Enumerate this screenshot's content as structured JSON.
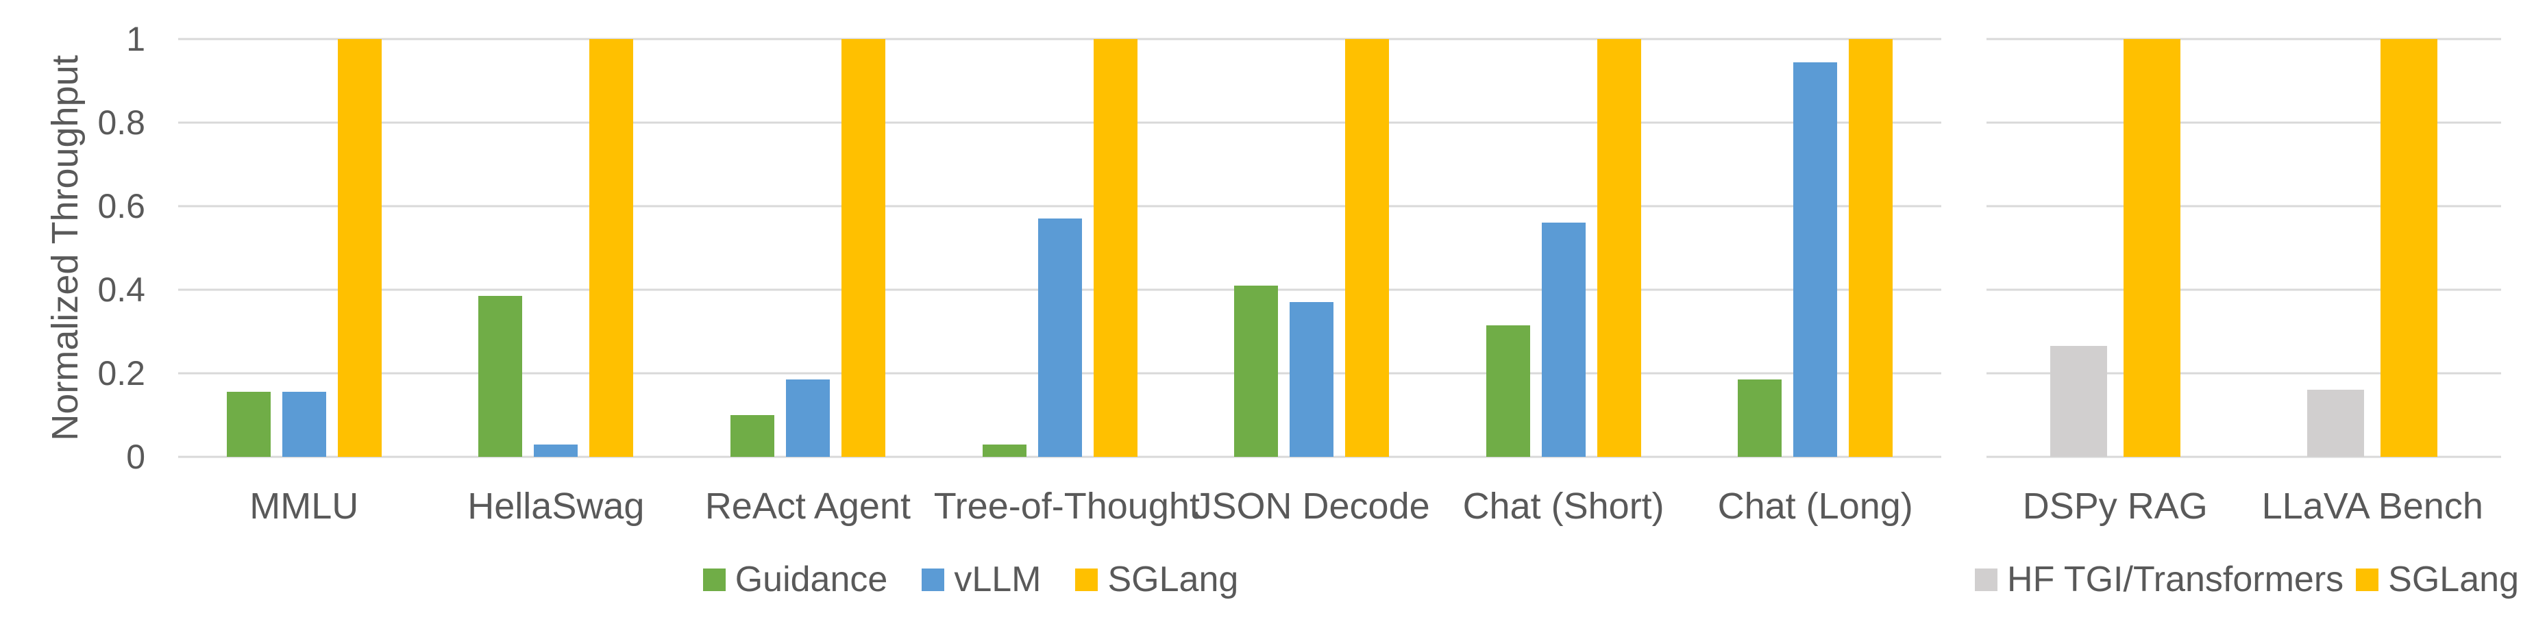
{
  "page": {
    "background": "#FFFFFF"
  },
  "y_axis": {
    "title": "Normalized Throughput",
    "tick_labels": [
      "0",
      "0.2",
      "0.4",
      "0.6",
      "0.8",
      "1"
    ],
    "min": 0,
    "max": 1,
    "text_color": "#595959",
    "gridline_color": "#D9D9D9"
  },
  "chart_data": [
    {
      "type": "bar",
      "name": "llm-benchmarks",
      "title": "",
      "xlabel": "",
      "ylabel": "Normalized Throughput",
      "ylim": [
        0,
        1
      ],
      "grid": true,
      "legend_position": "bottom",
      "categories": [
        "MMLU",
        "HellaSwag",
        "ReAct Agent",
        "Tree-of-Thought",
        "JSON Decode",
        "Chat (Short)",
        "Chat (Long)"
      ],
      "series": [
        {
          "name": "Guidance",
          "color": "#70AD47",
          "values": [
            0.155,
            0.385,
            0.1,
            0.03,
            0.41,
            0.315,
            0.185
          ]
        },
        {
          "name": "vLLM",
          "color": "#5B9BD5",
          "values": [
            0.155,
            0.03,
            0.185,
            0.57,
            0.37,
            0.56,
            0.945
          ]
        },
        {
          "name": "SGLang",
          "color": "#FFC000",
          "values": [
            1,
            1,
            1,
            1,
            1,
            1,
            1
          ]
        }
      ]
    },
    {
      "type": "bar",
      "name": "rag-and-multimodal-benchmarks",
      "title": "",
      "xlabel": "",
      "ylabel": "",
      "ylim": [
        0,
        1
      ],
      "grid": true,
      "legend_position": "bottom",
      "categories": [
        "DSPy RAG",
        "LLaVA Bench"
      ],
      "series": [
        {
          "name": "HF TGI/Transformers",
          "color": "#D1CFCF",
          "values": [
            0.265,
            0.16
          ]
        },
        {
          "name": "SGLang",
          "color": "#FFC000",
          "values": [
            1,
            1
          ]
        }
      ]
    }
  ]
}
